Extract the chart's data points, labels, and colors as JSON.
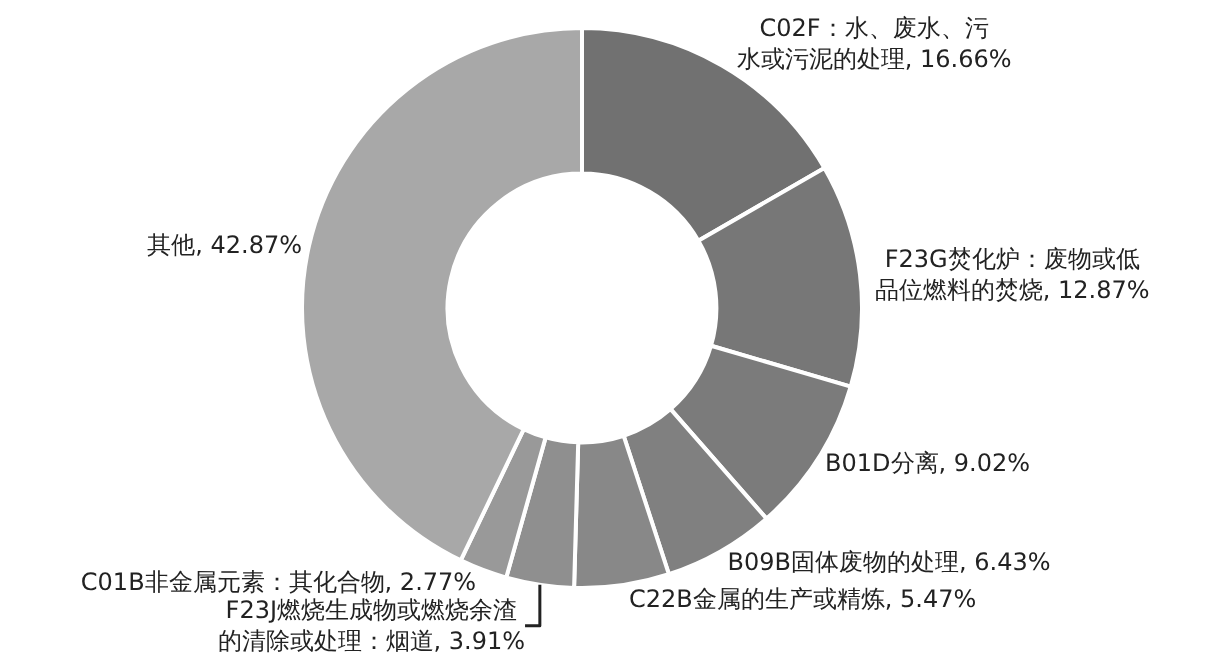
{
  "chart_data": {
    "type": "donut",
    "categories": [
      "C02F：水、废水、污水或污泥的处理",
      "F23G焚化炉：废物或低品位燃料的焚烧",
      "B01D分离",
      "B09B固体废物的处理",
      "C22B金属的生产或精炼",
      "F23J燃烧生成物或燃烧余渣的清除或处理：烟道",
      "C01B非金属元素：其化合物",
      "其他"
    ],
    "values": [
      16.66,
      12.87,
      9.02,
      6.43,
      5.47,
      3.91,
      2.77,
      42.87
    ],
    "value_labels": [
      "16.66%",
      "12.87%",
      "9.02%",
      "6.43%",
      "5.47%",
      "3.91%",
      "2.77%",
      "42.87%"
    ],
    "colors": [
      "#717171",
      "#777777",
      "#7b7b7b",
      "#808080",
      "#888888",
      "#8f8f8f",
      "#999999",
      "#a8a8a8"
    ],
    "legend": false
  }
}
